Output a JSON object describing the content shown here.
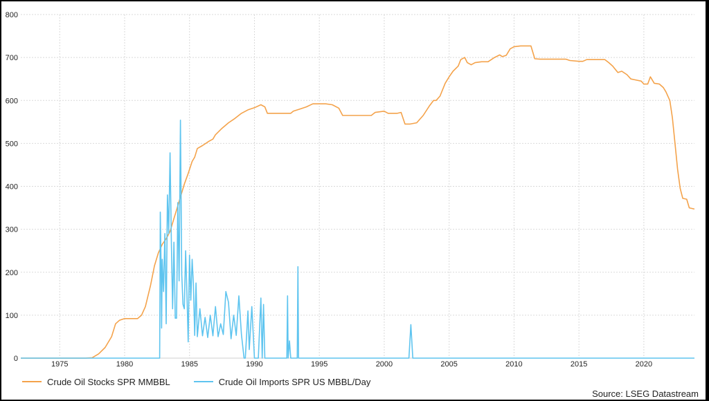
{
  "chart_data": {
    "type": "line",
    "ylim": [
      0,
      800
    ],
    "xlim": [
      1972.0,
      2023.9
    ],
    "y_ticks": [
      "0",
      "100",
      "200",
      "300",
      "400",
      "500",
      "600",
      "700",
      "800"
    ],
    "x_ticks": [
      "1975",
      "1980",
      "1985",
      "1990",
      "1995",
      "2000",
      "2005",
      "2010",
      "2015",
      "2020"
    ],
    "grid": true,
    "legend_position": "bottom-left",
    "series": [
      {
        "name": "Crude Oil Stocks SPR MMBBL",
        "color": "#f4a24a",
        "points": [
          [
            1972.0,
            0
          ],
          [
            1977.0,
            0
          ],
          [
            1977.5,
            1
          ],
          [
            1978.0,
            10
          ],
          [
            1978.5,
            25
          ],
          [
            1979.0,
            50
          ],
          [
            1979.3,
            80
          ],
          [
            1979.6,
            88
          ],
          [
            1980.0,
            92
          ],
          [
            1980.5,
            92
          ],
          [
            1981.0,
            92
          ],
          [
            1981.3,
            100
          ],
          [
            1981.6,
            120
          ],
          [
            1982.0,
            170
          ],
          [
            1982.3,
            215
          ],
          [
            1982.6,
            245
          ],
          [
            1982.9,
            265
          ],
          [
            1983.2,
            278
          ],
          [
            1983.5,
            295
          ],
          [
            1983.8,
            325
          ],
          [
            1984.0,
            345
          ],
          [
            1984.3,
            375
          ],
          [
            1984.6,
            405
          ],
          [
            1984.9,
            430
          ],
          [
            1985.2,
            458
          ],
          [
            1985.4,
            468
          ],
          [
            1985.6,
            488
          ],
          [
            1986.0,
            495
          ],
          [
            1986.5,
            505
          ],
          [
            1986.8,
            510
          ],
          [
            1987.0,
            520
          ],
          [
            1987.5,
            535
          ],
          [
            1988.0,
            548
          ],
          [
            1988.5,
            558
          ],
          [
            1989.0,
            570
          ],
          [
            1989.5,
            578
          ],
          [
            1990.0,
            583
          ],
          [
            1990.5,
            590
          ],
          [
            1990.8,
            585
          ],
          [
            1991.0,
            570
          ],
          [
            1992.0,
            570
          ],
          [
            1992.8,
            570
          ],
          [
            1993.0,
            575
          ],
          [
            1993.5,
            580
          ],
          [
            1994.0,
            585
          ],
          [
            1994.5,
            592
          ],
          [
            1995.0,
            592
          ],
          [
            1995.5,
            592
          ],
          [
            1996.0,
            590
          ],
          [
            1996.5,
            582
          ],
          [
            1996.8,
            565
          ],
          [
            1997.0,
            565
          ],
          [
            1998.0,
            565
          ],
          [
            1999.0,
            565
          ],
          [
            1999.3,
            572
          ],
          [
            2000.0,
            575
          ],
          [
            2000.3,
            570
          ],
          [
            2001.0,
            570
          ],
          [
            2001.3,
            572
          ],
          [
            2001.6,
            545
          ],
          [
            2002.0,
            545
          ],
          [
            2002.5,
            548
          ],
          [
            2003.0,
            565
          ],
          [
            2003.5,
            588
          ],
          [
            2003.8,
            600
          ],
          [
            2004.0,
            600
          ],
          [
            2004.3,
            610
          ],
          [
            2004.7,
            640
          ],
          [
            2005.0,
            655
          ],
          [
            2005.3,
            668
          ],
          [
            2005.7,
            680
          ],
          [
            2005.9,
            695
          ],
          [
            2006.2,
            700
          ],
          [
            2006.4,
            688
          ],
          [
            2006.7,
            683
          ],
          [
            2007.0,
            688
          ],
          [
            2007.5,
            690
          ],
          [
            2008.0,
            690
          ],
          [
            2008.5,
            700
          ],
          [
            2008.9,
            706
          ],
          [
            2009.1,
            702
          ],
          [
            2009.4,
            705
          ],
          [
            2009.7,
            720
          ],
          [
            2010.0,
            725
          ],
          [
            2010.5,
            727
          ],
          [
            2011.0,
            727
          ],
          [
            2011.3,
            727
          ],
          [
            2011.6,
            697
          ],
          [
            2012.0,
            696
          ],
          [
            2013.0,
            696
          ],
          [
            2014.0,
            696
          ],
          [
            2014.3,
            693
          ],
          [
            2015.0,
            691
          ],
          [
            2015.3,
            691
          ],
          [
            2015.6,
            695
          ],
          [
            2016.0,
            695
          ],
          [
            2017.0,
            695
          ],
          [
            2017.3,
            688
          ],
          [
            2017.6,
            680
          ],
          [
            2018.0,
            665
          ],
          [
            2018.3,
            668
          ],
          [
            2018.7,
            660
          ],
          [
            2019.0,
            650
          ],
          [
            2019.3,
            648
          ],
          [
            2019.8,
            645
          ],
          [
            2020.0,
            638
          ],
          [
            2020.3,
            638
          ],
          [
            2020.5,
            655
          ],
          [
            2020.8,
            640
          ],
          [
            2021.2,
            638
          ],
          [
            2021.5,
            630
          ],
          [
            2021.7,
            620
          ],
          [
            2022.0,
            600
          ],
          [
            2022.2,
            560
          ],
          [
            2022.4,
            500
          ],
          [
            2022.6,
            440
          ],
          [
            2022.8,
            395
          ],
          [
            2023.0,
            372
          ],
          [
            2023.3,
            370
          ],
          [
            2023.5,
            350
          ],
          [
            2023.9,
            347
          ]
        ]
      },
      {
        "name": "Crude Oil Imports SPR US MBBL/Day",
        "color": "#5ec4ef",
        "points": [
          [
            1972.0,
            0
          ],
          [
            1982.7,
            0
          ],
          [
            1982.75,
            340
          ],
          [
            1982.8,
            230
          ],
          [
            1982.85,
            70
          ],
          [
            1982.9,
            230
          ],
          [
            1983.0,
            155
          ],
          [
            1983.1,
            290
          ],
          [
            1983.2,
            80
          ],
          [
            1983.3,
            380
          ],
          [
            1983.4,
            290
          ],
          [
            1983.5,
            478
          ],
          [
            1983.6,
            270
          ],
          [
            1983.7,
            115
          ],
          [
            1983.8,
            270
          ],
          [
            1983.9,
            93
          ],
          [
            1984.0,
            93
          ],
          [
            1984.1,
            362
          ],
          [
            1984.2,
            180
          ],
          [
            1984.3,
            554
          ],
          [
            1984.4,
            195
          ],
          [
            1984.5,
            125
          ],
          [
            1984.6,
            115
          ],
          [
            1984.7,
            250
          ],
          [
            1984.8,
            150
          ],
          [
            1984.9,
            38
          ],
          [
            1985.0,
            240
          ],
          [
            1985.1,
            135
          ],
          [
            1985.2,
            230
          ],
          [
            1985.3,
            173
          ],
          [
            1985.4,
            53
          ],
          [
            1985.5,
            175
          ],
          [
            1985.6,
            50
          ],
          [
            1985.8,
            115
          ],
          [
            1986.0,
            52
          ],
          [
            1986.2,
            95
          ],
          [
            1986.4,
            48
          ],
          [
            1986.6,
            100
          ],
          [
            1986.8,
            52
          ],
          [
            1987.0,
            120
          ],
          [
            1987.2,
            50
          ],
          [
            1987.4,
            80
          ],
          [
            1987.6,
            55
          ],
          [
            1987.8,
            155
          ],
          [
            1988.0,
            130
          ],
          [
            1988.2,
            45
          ],
          [
            1988.4,
            100
          ],
          [
            1988.6,
            53
          ],
          [
            1988.8,
            145
          ],
          [
            1989.0,
            55
          ],
          [
            1989.2,
            0
          ],
          [
            1989.3,
            0
          ],
          [
            1989.5,
            110
          ],
          [
            1989.6,
            20
          ],
          [
            1989.8,
            120
          ],
          [
            1990.0,
            0
          ],
          [
            1990.3,
            0
          ],
          [
            1990.5,
            140
          ],
          [
            1990.6,
            0
          ],
          [
            1990.7,
            125
          ],
          [
            1990.8,
            0
          ],
          [
            1992.5,
            0
          ],
          [
            1992.55,
            145
          ],
          [
            1992.6,
            0
          ],
          [
            1992.7,
            40
          ],
          [
            1992.8,
            0
          ],
          [
            1993.3,
            0
          ],
          [
            1993.35,
            213
          ],
          [
            1993.4,
            0
          ],
          [
            2001.9,
            0
          ],
          [
            2002.05,
            78
          ],
          [
            2002.2,
            0
          ],
          [
            2023.9,
            0
          ]
        ]
      }
    ]
  },
  "legend": {
    "items": [
      {
        "label": "Crude Oil Stocks SPR MMBBL",
        "color": "#f4a24a"
      },
      {
        "label": "Crude Oil Imports SPR US MBBL/Day",
        "color": "#5ec4ef"
      }
    ]
  },
  "source_text": "Source: LSEG Datastream"
}
